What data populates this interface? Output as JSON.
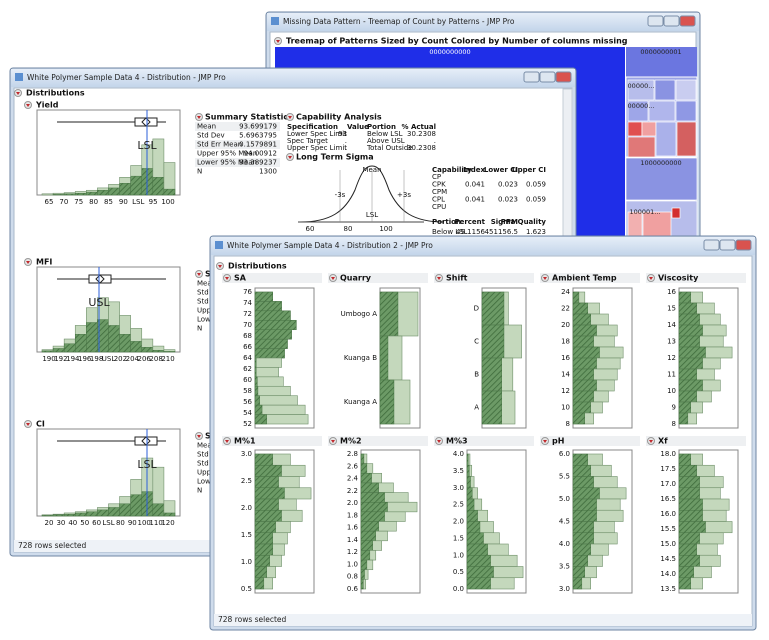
{
  "window_a": {
    "title": "Missing Data Pattern - Treemap of Count by Patterns - JMP Pro",
    "heading": "Treemap of Patterns Sized by Count Colored by Number of columns missing",
    "cells": [
      "0000000000",
      "0000000001",
      "00000...",
      "00000...",
      "1000000000",
      "100001..."
    ]
  },
  "window_b": {
    "title": "White Polymer Sample Data 4 - Distribution - JMP Pro",
    "section": "Distributions",
    "footer": "728 rows selected",
    "reports": [
      {
        "name": "Yield",
        "spec": "LSL",
        "ticks": [
          "65",
          "70",
          "75",
          "80",
          "85",
          "90",
          "LSL",
          "95",
          "100"
        ],
        "counts": [
          0.02,
          0.03,
          0.04,
          0.06,
          0.08,
          0.12,
          0.18,
          0.3,
          0.5,
          0.85,
          0.95,
          0.55
        ],
        "selected_counts": [
          0.0,
          0.01,
          0.02,
          0.03,
          0.05,
          0.08,
          0.12,
          0.2,
          0.32,
          0.45,
          0.3,
          0.1
        ]
      },
      {
        "name": "MFI",
        "spec": "USL",
        "ticks": [
          "190",
          "192",
          "194",
          "196",
          "198",
          "USL",
          "202",
          "204",
          "206",
          "208",
          "210"
        ],
        "counts": [
          0.04,
          0.1,
          0.22,
          0.45,
          0.75,
          0.92,
          0.85,
          0.62,
          0.4,
          0.22,
          0.1,
          0.04
        ],
        "selected_counts": [
          0.02,
          0.06,
          0.14,
          0.3,
          0.5,
          0.55,
          0.45,
          0.3,
          0.18,
          0.08,
          0.03,
          0.01
        ]
      },
      {
        "name": "CI",
        "spec": "LSL",
        "ticks": [
          "20",
          "30",
          "40",
          "50",
          "60",
          "LSL",
          "80",
          "90",
          "100",
          "110",
          "120"
        ],
        "counts": [
          0.02,
          0.03,
          0.05,
          0.07,
          0.1,
          0.14,
          0.2,
          0.32,
          0.6,
          0.95,
          0.8,
          0.25
        ],
        "selected_counts": [
          0.01,
          0.02,
          0.03,
          0.05,
          0.07,
          0.1,
          0.14,
          0.2,
          0.35,
          0.4,
          0.2,
          0.05
        ]
      }
    ],
    "summary": {
      "title": "Summary Statistics",
      "rows": [
        [
          "Mean",
          "93.699179"
        ],
        [
          "Std Dev",
          "5.6963795"
        ],
        [
          "Std Err Mean",
          "0.1579891"
        ],
        [
          "Upper 95% Mean",
          "94.00912"
        ],
        [
          "Lower 95% Mean",
          "93.389237"
        ],
        [
          "N",
          "1300"
        ]
      ],
      "short_rows": [
        "Mean",
        "Std Dev",
        "Std Dev",
        "Upper",
        "Lower",
        "N"
      ]
    },
    "capability": {
      "title": "Capability Analysis",
      "spec_header": [
        "Specification",
        "Value",
        "Portion",
        "% Actual"
      ],
      "spec_rows": [
        [
          "Lower Spec Limit",
          "93",
          "Below LSL",
          "30.2308"
        ],
        [
          "Spec Target",
          ".",
          "Above USL",
          "."
        ],
        [
          "Upper Spec Limit",
          ".",
          "Total Outside",
          "30.2308"
        ]
      ],
      "sigma_title": "Long Term Sigma",
      "curve_labels": [
        "-3s",
        "Mean",
        "+3s"
      ],
      "curve_spec": "LSL",
      "curve_ticks": [
        "60",
        "80",
        "100"
      ],
      "index_header": [
        "Capability",
        "Index",
        "Lower CI",
        "Upper CI"
      ],
      "index_rows": [
        [
          "CP",
          "",
          "",
          ""
        ],
        [
          "CPK",
          "0.041",
          "0.023",
          "0.059"
        ],
        [
          "CPM",
          "",
          "",
          ""
        ],
        [
          "CPL",
          "0.041",
          "0.023",
          "0.059"
        ],
        [
          "CPU",
          "",
          "",
          ""
        ]
      ],
      "portion_header": [
        "Portion",
        "Percent",
        "PPM",
        "Sigma Quality"
      ],
      "portion_row": [
        "Below LSL",
        "45.1156",
        "451156.5",
        "1.623"
      ]
    }
  },
  "window_c": {
    "title": "White Polymer Sample Data 4 - Distribution 2 - JMP Pro",
    "section": "Distributions",
    "footer": "728 rows selected",
    "panels": [
      {
        "name": "SA",
        "ticks": [
          "76",
          "74",
          "72",
          "70",
          "68",
          "66",
          "64",
          "62",
          "60",
          "58",
          "56",
          "54",
          "52"
        ],
        "counts": [
          0.3,
          0.45,
          0.6,
          0.7,
          0.62,
          0.55,
          0.5,
          0.45,
          0.4,
          0.48,
          0.6,
          0.72,
          0.85,
          0.9
        ],
        "selected_counts": [
          0.3,
          0.45,
          0.6,
          0.7,
          0.62,
          0.55,
          0.5,
          0.02,
          0.02,
          0.04,
          0.05,
          0.08,
          0.12,
          0.2
        ]
      },
      {
        "name": "Quarry",
        "ticks": [
          "Umbogo A",
          "Kuanga B",
          "Kuanga A"
        ],
        "counts": [
          0.95,
          0.55,
          0.75
        ],
        "selected_counts": [
          0.45,
          0.2,
          0.35
        ]
      },
      {
        "name": "Shift",
        "ticks": [
          "D",
          "C",
          "B",
          "A"
        ],
        "counts": [
          0.6,
          0.9,
          0.7,
          0.75
        ],
        "selected_counts": [
          0.5,
          0.5,
          0.45,
          0.45
        ]
      },
      {
        "name": "Ambient  Temp",
        "ticks": [
          "24",
          "22",
          "20",
          "18",
          "16",
          "14",
          "12",
          "10",
          "8"
        ],
        "counts": [
          0.2,
          0.45,
          0.6,
          0.75,
          0.7,
          0.85,
          0.8,
          0.75,
          0.7,
          0.6,
          0.5,
          0.35
        ],
        "selected_counts": [
          0.1,
          0.25,
          0.3,
          0.4,
          0.35,
          0.45,
          0.4,
          0.35,
          0.4,
          0.35,
          0.3,
          0.2
        ]
      },
      {
        "name": "Viscosity",
        "ticks": [
          "16",
          "15",
          "14",
          "13",
          "12",
          "11",
          "10",
          "9",
          "8"
        ],
        "counts": [
          0.4,
          0.6,
          0.7,
          0.8,
          0.75,
          0.9,
          0.7,
          0.6,
          0.7,
          0.55,
          0.4,
          0.3
        ],
        "selected_counts": [
          0.2,
          0.3,
          0.35,
          0.4,
          0.35,
          0.45,
          0.4,
          0.3,
          0.4,
          0.3,
          0.2,
          0.15
        ]
      },
      {
        "name": "M%1",
        "ticks": [
          "3.0",
          "2.5",
          "2.0",
          "1.5",
          "1.0",
          "0.5"
        ],
        "counts": [
          0.6,
          0.85,
          0.75,
          0.95,
          0.7,
          0.8,
          0.6,
          0.55,
          0.5,
          0.45,
          0.35,
          0.3
        ],
        "selected_counts": [
          0.3,
          0.45,
          0.4,
          0.5,
          0.4,
          0.45,
          0.35,
          0.3,
          0.3,
          0.25,
          0.2,
          0.15
        ]
      },
      {
        "name": "M%2",
        "ticks": [
          "2.8",
          "2.6",
          "2.4",
          "2.2",
          "2.0",
          "1.8",
          "1.6",
          "1.4",
          "1.2",
          "1.0",
          "0.8",
          "0.6"
        ],
        "counts": [
          0.1,
          0.2,
          0.35,
          0.55,
          0.8,
          0.95,
          0.75,
          0.6,
          0.45,
          0.35,
          0.25,
          0.2,
          0.12,
          0.08
        ],
        "selected_counts": [
          0.05,
          0.1,
          0.18,
          0.3,
          0.4,
          0.45,
          0.4,
          0.3,
          0.25,
          0.2,
          0.15,
          0.1,
          0.06,
          0.04
        ]
      },
      {
        "name": "M%3",
        "ticks": [
          "4.0",
          "3.5",
          "3.0",
          "2.5",
          "2.0",
          "1.5",
          "1.0",
          "0.5",
          "0.0"
        ],
        "counts": [
          0.05,
          0.08,
          0.12,
          0.18,
          0.25,
          0.35,
          0.45,
          0.55,
          0.7,
          0.85,
          0.95,
          0.8
        ],
        "selected_counts": [
          0.02,
          0.04,
          0.06,
          0.09,
          0.12,
          0.18,
          0.22,
          0.28,
          0.35,
          0.4,
          0.45,
          0.4
        ]
      },
      {
        "name": "pH",
        "ticks": [
          "6.0",
          "5.5",
          "5.0",
          "4.5",
          "4.0",
          "3.5",
          "3.0"
        ],
        "counts": [
          0.5,
          0.65,
          0.75,
          0.9,
          0.8,
          0.85,
          0.7,
          0.75,
          0.6,
          0.5,
          0.4,
          0.3
        ],
        "selected_counts": [
          0.25,
          0.3,
          0.35,
          0.45,
          0.4,
          0.4,
          0.35,
          0.35,
          0.3,
          0.25,
          0.2,
          0.15
        ]
      },
      {
        "name": "Xf",
        "ticks": [
          "18.0",
          "17.5",
          "17.0",
          "16.5",
          "16.0",
          "15.5",
          "15.0",
          "14.5",
          "14.0",
          "13.5"
        ],
        "counts": [
          0.4,
          0.6,
          0.75,
          0.7,
          0.85,
          0.8,
          0.9,
          0.75,
          0.65,
          0.7,
          0.55,
          0.4
        ],
        "selected_counts": [
          0.2,
          0.3,
          0.35,
          0.35,
          0.4,
          0.4,
          0.45,
          0.35,
          0.3,
          0.35,
          0.25,
          0.2
        ]
      }
    ]
  }
}
